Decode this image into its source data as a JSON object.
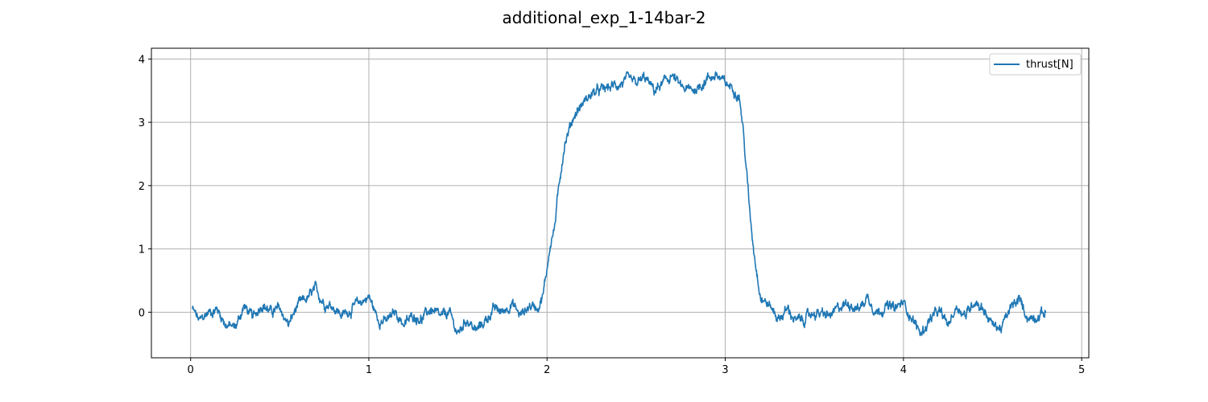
{
  "chart_data": {
    "type": "line",
    "title": "additional_exp_1-14bar-2",
    "xlabel": "",
    "ylabel": "",
    "xlim": [
      -0.22,
      5.04
    ],
    "ylim": [
      -0.72,
      4.17
    ],
    "xticks": [
      0,
      1,
      2,
      3,
      4,
      5
    ],
    "yticks": [
      0,
      1,
      2,
      3,
      4
    ],
    "grid": true,
    "legend": {
      "position": "top-right",
      "entries": [
        "thrust[N]"
      ]
    },
    "series": [
      {
        "name": "thrust[N]",
        "color": "#1f77b4",
        "x_start": 0.01,
        "x_end": 4.8,
        "x": [
          0.01,
          0.05,
          0.1,
          0.15,
          0.2,
          0.25,
          0.3,
          0.35,
          0.4,
          0.45,
          0.5,
          0.55,
          0.6,
          0.65,
          0.7,
          0.75,
          0.8,
          0.85,
          0.9,
          0.95,
          1.0,
          1.05,
          1.1,
          1.15,
          1.2,
          1.25,
          1.3,
          1.35,
          1.4,
          1.45,
          1.5,
          1.55,
          1.6,
          1.65,
          1.7,
          1.75,
          1.8,
          1.85,
          1.9,
          1.95,
          1.98,
          2.0,
          2.02,
          2.04,
          2.06,
          2.08,
          2.1,
          2.12,
          2.15,
          2.2,
          2.25,
          2.3,
          2.35,
          2.4,
          2.45,
          2.5,
          2.55,
          2.6,
          2.65,
          2.7,
          2.75,
          2.8,
          2.85,
          2.9,
          2.95,
          3.0,
          3.05,
          3.08,
          3.1,
          3.12,
          3.14,
          3.16,
          3.18,
          3.2,
          3.25,
          3.3,
          3.35,
          3.4,
          3.45,
          3.5,
          3.55,
          3.6,
          3.65,
          3.7,
          3.75,
          3.8,
          3.85,
          3.9,
          3.95,
          4.0,
          4.05,
          4.1,
          4.15,
          4.2,
          4.25,
          4.3,
          4.35,
          4.4,
          4.45,
          4.5,
          4.55,
          4.6,
          4.65,
          4.7,
          4.75,
          4.8
        ],
        "y": [
          0.05,
          -0.15,
          0.0,
          0.05,
          -0.2,
          -0.25,
          0.1,
          -0.1,
          0.15,
          0.0,
          0.05,
          -0.2,
          0.1,
          0.2,
          0.35,
          0.15,
          0.1,
          -0.05,
          0.05,
          0.15,
          0.25,
          -0.1,
          -0.15,
          0.0,
          -0.2,
          -0.05,
          -0.1,
          0.05,
          -0.1,
          0.0,
          -0.35,
          -0.1,
          -0.3,
          -0.15,
          0.05,
          0.0,
          0.15,
          -0.05,
          0.1,
          0.1,
          0.3,
          0.7,
          1.1,
          1.3,
          1.8,
          2.3,
          2.7,
          2.85,
          3.1,
          3.3,
          3.45,
          3.5,
          3.55,
          3.6,
          3.65,
          3.6,
          3.7,
          3.5,
          3.6,
          3.75,
          3.55,
          3.5,
          3.55,
          3.7,
          3.75,
          3.6,
          3.55,
          3.4,
          2.9,
          2.2,
          1.5,
          1.0,
          0.6,
          0.25,
          0.1,
          -0.1,
          0.05,
          -0.15,
          -0.1,
          0.0,
          -0.05,
          -0.05,
          0.1,
          0.15,
          0.05,
          0.25,
          0.0,
          0.1,
          0.05,
          0.15,
          -0.1,
          -0.35,
          -0.1,
          0.0,
          -0.2,
          0.1,
          -0.05,
          0.2,
          0.05,
          -0.2,
          -0.25,
          0.05,
          0.2,
          -0.1,
          -0.05,
          0.0
        ]
      }
    ]
  }
}
